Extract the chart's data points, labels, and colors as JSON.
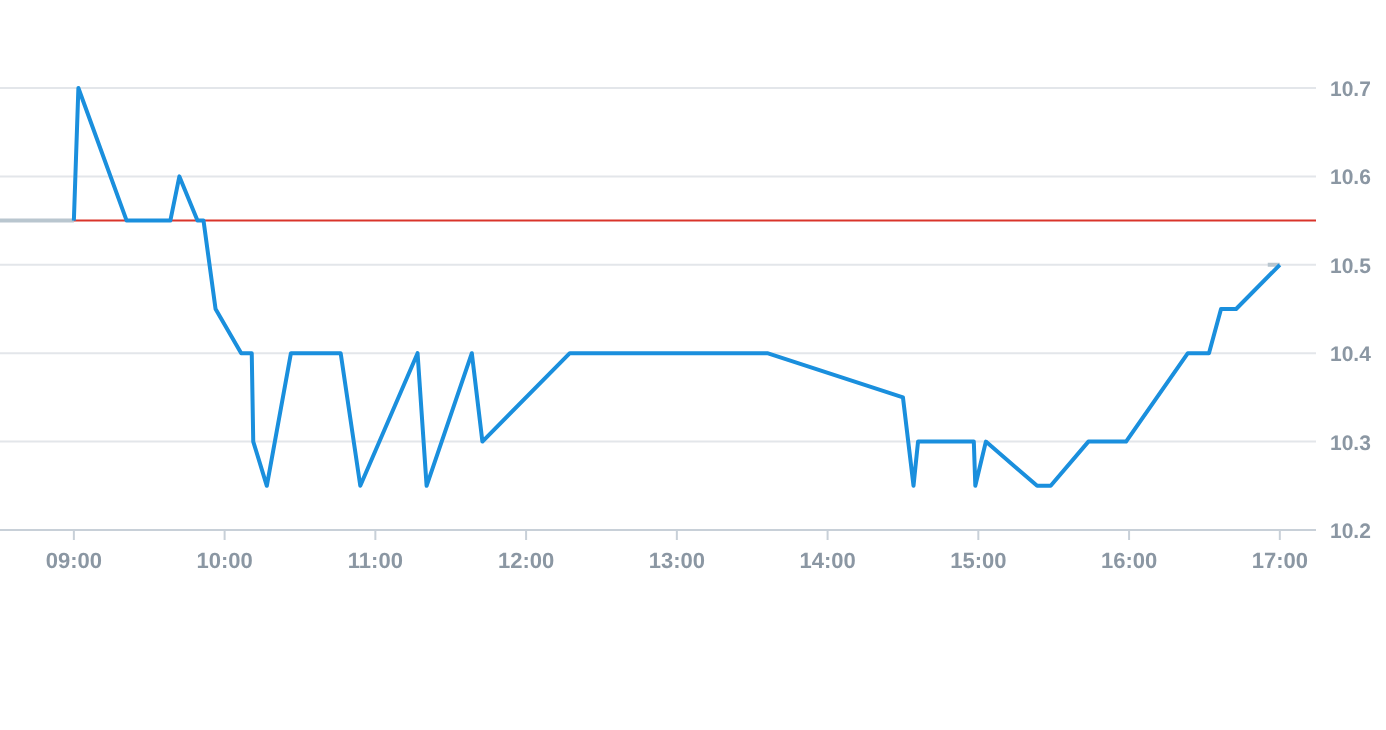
{
  "chart_data": {
    "type": "line",
    "xlim": [
      8.51,
      17.24
    ],
    "ylim": [
      10.2,
      10.7
    ],
    "xticks": [
      {
        "value": 9,
        "label": "09:00"
      },
      {
        "value": 10,
        "label": "10:00"
      },
      {
        "value": 11,
        "label": "11:00"
      },
      {
        "value": 12,
        "label": "12:00"
      },
      {
        "value": 13,
        "label": "13:00"
      },
      {
        "value": 14,
        "label": "14:00"
      },
      {
        "value": 15,
        "label": "15:00"
      },
      {
        "value": 16,
        "label": "16:00"
      },
      {
        "value": 17,
        "label": "17:00"
      }
    ],
    "yticks": [
      10.2,
      10.3,
      10.4,
      10.5,
      10.6,
      10.7
    ],
    "grid": "y",
    "line_style": "solid",
    "ref_lines": [
      {
        "axis": "y",
        "value": 10.55,
        "color": "#d9342b"
      }
    ],
    "series": [
      {
        "color": "#b9c6cf",
        "x": [
          8.51,
          9.0,
          9.01,
          16.92,
          17.0
        ],
        "values": [
          10.55,
          10.55,
          null,
          10.5,
          10.5
        ]
      },
      {
        "color": "#1a8fdd",
        "x": [
          9.0,
          9.03,
          9.35,
          9.64,
          9.7,
          9.82,
          9.86,
          9.94,
          10.11,
          10.18,
          10.19,
          10.28,
          10.44,
          10.77,
          10.9,
          11.28,
          11.34,
          11.64,
          11.71,
          12.29,
          13.6,
          14.5,
          14.57,
          14.6,
          14.97,
          14.98,
          15.05,
          15.39,
          15.48,
          15.73,
          15.98,
          16.39,
          16.53,
          16.61,
          16.71,
          17.0
        ],
        "values": [
          10.55,
          10.7,
          10.55,
          10.55,
          10.6,
          10.55,
          10.55,
          10.45,
          10.4,
          10.4,
          10.3,
          10.25,
          10.4,
          10.4,
          10.25,
          10.4,
          10.25,
          10.4,
          10.3,
          10.4,
          10.4,
          10.35,
          10.25,
          10.3,
          10.3,
          10.25,
          10.3,
          10.25,
          10.25,
          10.3,
          10.3,
          10.4,
          10.4,
          10.45,
          10.45,
          10.5
        ]
      }
    ]
  }
}
